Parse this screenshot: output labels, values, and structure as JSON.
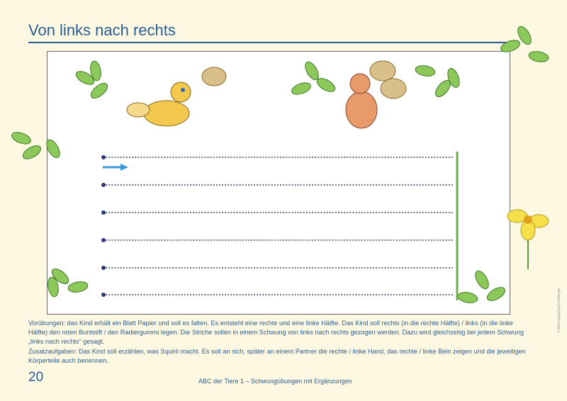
{
  "header": {
    "title": "Von links nach rechts"
  },
  "exercise": {
    "rows": 6,
    "line_color": "#6b6f8a",
    "start_dot_color": "#2b3a7a",
    "arrow_color": "#3a9ad9",
    "end_line_color": "#6ab04c"
  },
  "instructions": {
    "vorubungen": "Vorübungen: das Kind erhält ein Blatt Papier und soll es falten. Es entsteht eine rechte und eine linke Hälfte. Das Kind soll rechts (in die rechte Hälfte) / links (in die linke Hälfte) den roten Buntstift / den Radiergummi legen. Die Striche sollen in einem Schwung von links nach rechts gezogen werden. Dazu wird gleichzeitig bei jedem Schwung „links nach rechts“ gesagt.",
    "zusatz": "Zusatzaufgaben: Das Kind soll erzählen, was Squirli macht. Es soll an sich, später an einem Partner die rechte / linke Hand, das rechte / linke Bein zeigen und die jeweiligen Körperteile auch benennen."
  },
  "footer": {
    "page_number": "20",
    "book_title": "ABC der Tiere 1 – Schwungübungen mit Ergänzungen",
    "copyright": "© Bildungsverlag Lemberger"
  }
}
